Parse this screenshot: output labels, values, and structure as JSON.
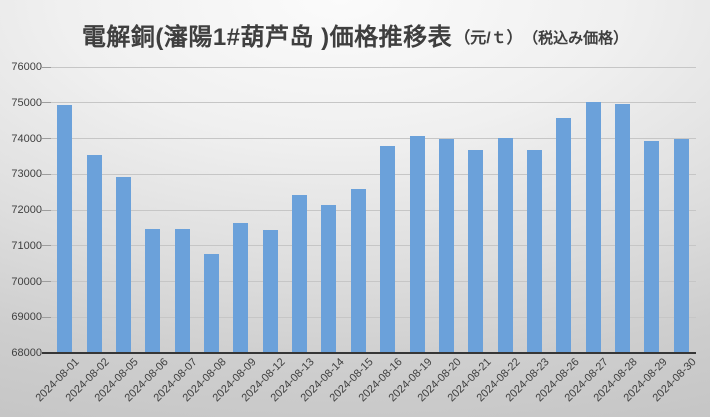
{
  "title": {
    "main": "電解銅(瀋陽1#葫芦岛 )価格推移表",
    "unit": "（元/ｔ）",
    "note": "（税込み価格）"
  },
  "chart_data": {
    "type": "bar",
    "title": "電解銅(瀋陽1#葫芦岛 )価格推移表（元/ｔ）（税込み価格）",
    "categories": [
      "2024-08-01",
      "2024-08-02",
      "2024-08-05",
      "2024-08-06",
      "2024-08-07",
      "2024-08-08",
      "2024-08-09",
      "2024-08-12",
      "2024-08-13",
      "2024-08-14",
      "2024-08-15",
      "2024-08-16",
      "2024-08-19",
      "2024-08-20",
      "2024-08-21",
      "2024-08-22",
      "2024-08-23",
      "2024-08-26",
      "2024-08-27",
      "2024-08-28",
      "2024-08-29",
      "2024-08-30"
    ],
    "values": [
      74900,
      73500,
      72900,
      71450,
      71450,
      70750,
      71600,
      71400,
      72400,
      72100,
      72550,
      73750,
      74050,
      73950,
      73650,
      74000,
      73650,
      74550,
      75000,
      74950,
      73900,
      73950
    ],
    "xlabel": "",
    "ylabel": "",
    "ylim": [
      68000,
      76000
    ],
    "ytick_step": 1000,
    "yticks": [
      68000,
      69000,
      70000,
      71000,
      72000,
      73000,
      74000,
      75000,
      76000
    ],
    "grid": true,
    "legend": false,
    "bar_color": "#6BA1DA",
    "gridline_color": "#C6C6C6",
    "axis_line_color": "#363636",
    "label_color": "#3F3F3F"
  }
}
